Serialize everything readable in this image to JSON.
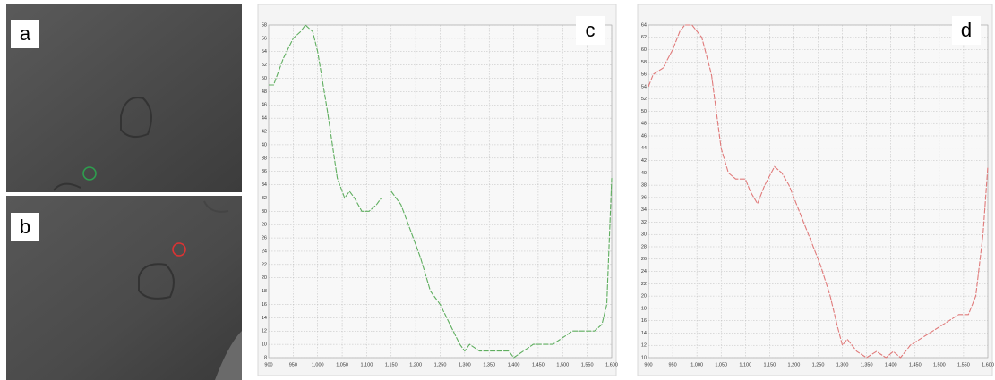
{
  "images": [
    {
      "label": "a"
    },
    {
      "label": "b"
    }
  ],
  "chart_data": [
    {
      "type": "line",
      "label": "c",
      "x": [
        900,
        910,
        930,
        950,
        965,
        975,
        990,
        1000,
        1020,
        1040,
        1055,
        1065,
        1075,
        1090,
        1105,
        1120,
        1130,
        1140,
        1150,
        1170,
        1190,
        1210,
        1230,
        1250,
        1270,
        1290,
        1300,
        1310,
        1330,
        1360,
        1390,
        1400,
        1420,
        1440,
        1460,
        1480,
        1500,
        1520,
        1545,
        1565,
        1580,
        1590,
        1600
      ],
      "series": [
        {
          "color": "#5fae5f",
          "values": [
            49,
            49,
            53,
            56,
            57,
            58,
            57,
            54,
            45,
            35,
            32,
            33,
            32,
            30,
            30,
            31,
            32,
            null,
            33,
            31,
            27,
            23,
            18,
            16,
            13,
            10,
            9,
            10,
            9,
            9,
            9,
            8,
            9,
            10,
            10,
            10,
            11,
            12,
            12,
            12,
            13,
            16,
            35
          ]
        }
      ],
      "xlim": [
        900,
        1600
      ],
      "xticks": [
        900,
        950,
        {
          "value": 1000,
          "label": "1,000"
        },
        {
          "value": 1050,
          "label": "1,050"
        },
        {
          "value": 1100,
          "label": "1,100"
        },
        {
          "value": 1150,
          "label": "1,150"
        },
        {
          "value": 1200,
          "label": "1,200"
        },
        {
          "value": 1250,
          "label": "1,250"
        },
        {
          "value": 1300,
          "label": "1,300"
        },
        {
          "value": 1350,
          "label": "1,350"
        },
        {
          "value": 1400,
          "label": "1,400"
        },
        {
          "value": 1450,
          "label": "1,450"
        },
        {
          "value": 1500,
          "label": "1,500"
        },
        {
          "value": 1550,
          "label": "1,550"
        },
        {
          "value": 1600,
          "label": "1,600"
        }
      ],
      "ylim": [
        8,
        58
      ],
      "yticks": [
        8,
        10,
        12,
        14,
        16,
        18,
        20,
        22,
        24,
        26,
        28,
        30,
        32,
        34,
        36,
        38,
        40,
        42,
        44,
        46,
        48,
        50,
        52,
        54,
        56,
        58
      ],
      "grid": true
    },
    {
      "type": "line",
      "label": "d",
      "x": [
        900,
        910,
        930,
        950,
        965,
        975,
        990,
        1000,
        1010,
        1030,
        1050,
        1065,
        1080,
        1100,
        1110,
        1125,
        1140,
        1160,
        1175,
        1190,
        1210,
        1230,
        1255,
        1275,
        1290,
        1300,
        1310,
        1330,
        1350,
        1370,
        1390,
        1405,
        1420,
        1440,
        1460,
        1480,
        1500,
        1520,
        1540,
        1560,
        1575,
        1590,
        1600
      ],
      "series": [
        {
          "color": "#e07a7a",
          "values": [
            54,
            56,
            57,
            60,
            63,
            64,
            64,
            63,
            62,
            56,
            44,
            40,
            39,
            39,
            37,
            35,
            38,
            41,
            40,
            38,
            34,
            30,
            25,
            20,
            15,
            12,
            13,
            11,
            10,
            11,
            10,
            11,
            10,
            12,
            13,
            14,
            15,
            16,
            17,
            17,
            20,
            30,
            41
          ]
        }
      ],
      "xlim": [
        900,
        1600
      ],
      "xticks": [
        900,
        950,
        {
          "value": 1000,
          "label": "1,000"
        },
        {
          "value": 1050,
          "label": "1,050"
        },
        {
          "value": 1100,
          "label": "1,100"
        },
        {
          "value": 1150,
          "label": "1,150"
        },
        {
          "value": 1200,
          "label": "1,200"
        },
        {
          "value": 1250,
          "label": "1,250"
        },
        {
          "value": 1300,
          "label": "1,300"
        },
        {
          "value": 1350,
          "label": "1,350"
        },
        {
          "value": 1400,
          "label": "1,400"
        },
        {
          "value": 1450,
          "label": "1,450"
        },
        {
          "value": 1500,
          "label": "1,500"
        },
        {
          "value": 1550,
          "label": "1,550"
        },
        {
          "value": 1600,
          "label": "1,600"
        }
      ],
      "ylim": [
        10,
        64
      ],
      "yticks": [
        10,
        12,
        14,
        16,
        18,
        20,
        22,
        24,
        26,
        28,
        30,
        32,
        34,
        36,
        38,
        40,
        42,
        44,
        46,
        48,
        50,
        52,
        54,
        56,
        58,
        60,
        62,
        64
      ],
      "grid": true
    }
  ]
}
